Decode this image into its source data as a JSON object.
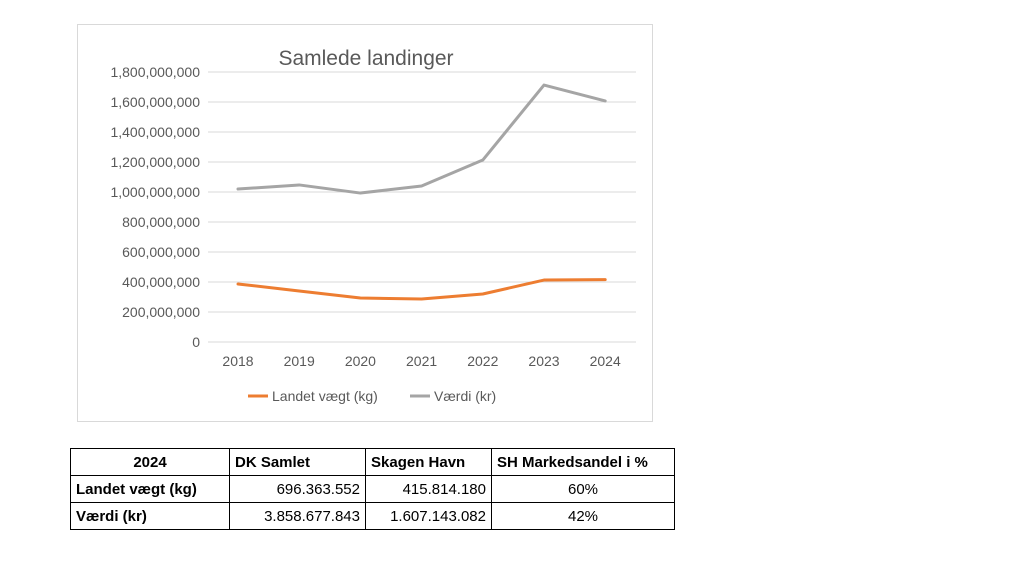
{
  "chart_data": {
    "type": "line",
    "title": "Samlede landinger",
    "categories": [
      "2018",
      "2019",
      "2020",
      "2021",
      "2022",
      "2023",
      "2024"
    ],
    "series": [
      {
        "name": "Landet vægt (kg)",
        "color": "#ed7d31",
        "values": [
          387000000,
          340000000,
          293000000,
          287000000,
          320000000,
          413000000,
          415814180
        ]
      },
      {
        "name": "Værdi (kr)",
        "color": "#a5a5a5",
        "values": [
          1020000000,
          1047000000,
          993000000,
          1040000000,
          1213000000,
          1713000000,
          1607143082
        ]
      }
    ],
    "ylim": [
      0,
      1800000000
    ],
    "yticks": [
      "0",
      "200,000,000",
      "400,000,000",
      "600,000,000",
      "800,000,000",
      "1,000,000,000",
      "1,200,000,000",
      "1,400,000,000",
      "1,600,000,000",
      "1,800,000,000"
    ],
    "grid": true,
    "legend_position": "bottom"
  },
  "table": {
    "header": [
      "2024",
      "DK Samlet",
      "Skagen Havn",
      "SH Markedsandel i %"
    ],
    "rows": [
      [
        "Landet vægt (kg)",
        "696.363.552",
        "415.814.180",
        "60%"
      ],
      [
        "Værdi (kr)",
        "3.858.677.843",
        "1.607.143.082",
        "42%"
      ]
    ]
  }
}
